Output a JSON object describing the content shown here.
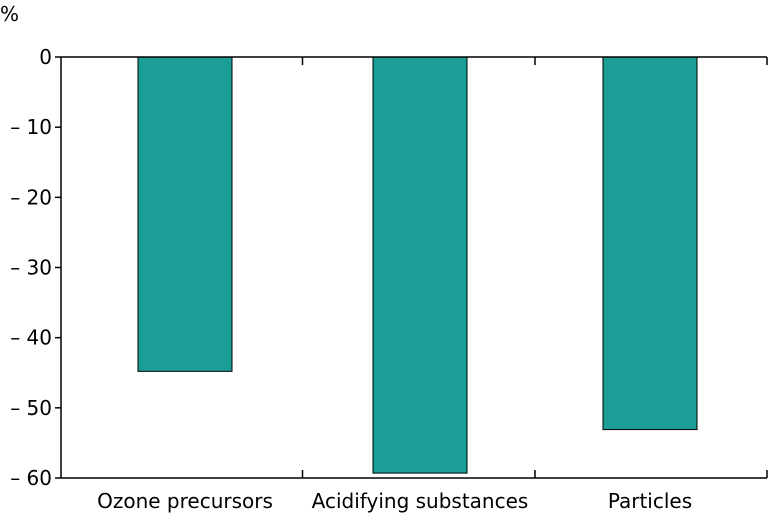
{
  "chart_data": {
    "type": "bar",
    "unit_label": "%",
    "categories": [
      "Ozone precursors",
      "Acidifying substances",
      "Particles"
    ],
    "values": [
      -44.8,
      -59.3,
      -53.1
    ],
    "ylim": [
      -60,
      0
    ],
    "yticks": [
      0,
      -10,
      -20,
      -30,
      -40,
      -50,
      -60
    ],
    "ytick_labels": [
      "0",
      "– 10",
      "– 20",
      "– 30",
      "– 40",
      "– 50",
      "– 60"
    ],
    "bar_color": "#1a9e96",
    "grid": false,
    "legend": "none"
  }
}
